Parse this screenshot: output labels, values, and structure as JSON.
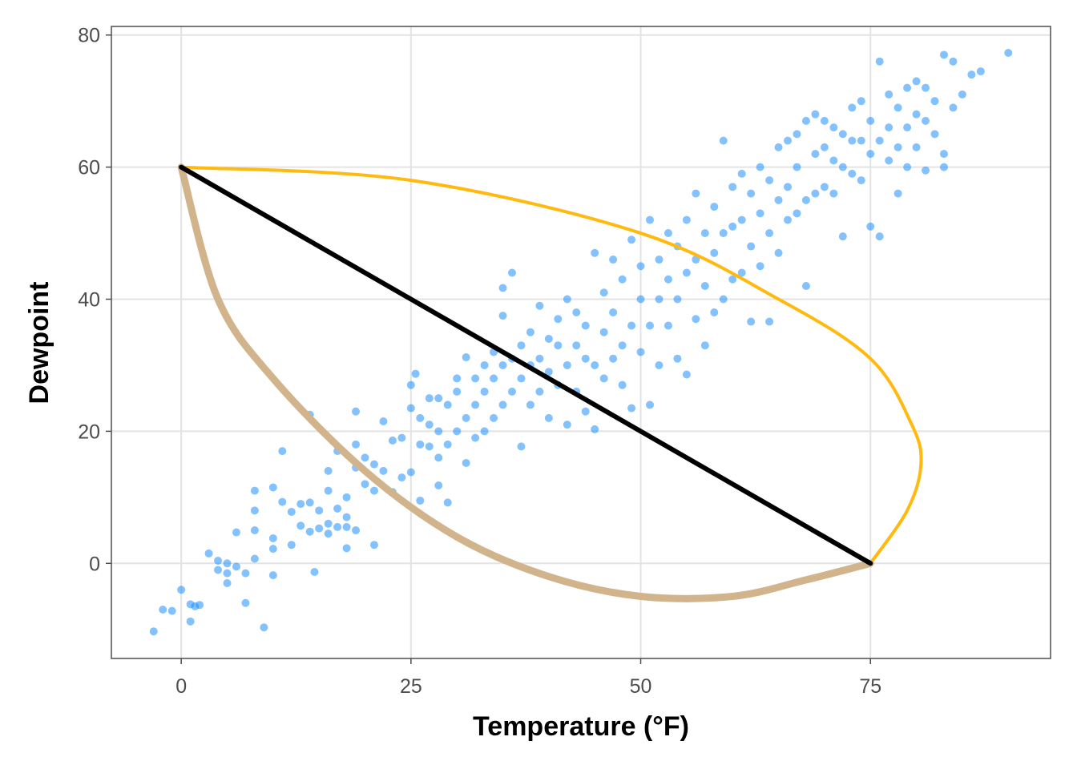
{
  "chart_data": {
    "type": "scatter",
    "title": "",
    "xlabel": "Temperature (°F)",
    "ylabel": "Dewpoint",
    "xlim": [
      -7.6,
      94.6
    ],
    "ylim": [
      -14.4,
      81.3
    ],
    "xticks": [
      0,
      25,
      50,
      75
    ],
    "yticks": [
      0,
      20,
      40,
      60,
      80
    ],
    "xtick_labels": [
      "0",
      "25",
      "50",
      "75"
    ],
    "ytick_labels": [
      "0",
      "20",
      "40",
      "60",
      "80"
    ],
    "grid": true,
    "legend": "none",
    "colors": {
      "points": "#1E90FF",
      "orange_curve": "#FFB90F",
      "tan_curve": "#D2B48C",
      "line": "#000000"
    },
    "points_note_sampled": true,
    "points": [
      [
        -3,
        -10.3
      ],
      [
        -2,
        -7
      ],
      [
        -1,
        -7.2
      ],
      [
        0,
        -4
      ],
      [
        1,
        -6.2
      ],
      [
        1,
        -8.8
      ],
      [
        1.5,
        -6.5
      ],
      [
        2,
        -6.3
      ],
      [
        3,
        1.5
      ],
      [
        4,
        0.4
      ],
      [
        4,
        -1
      ],
      [
        5,
        0
      ],
      [
        5,
        -1.5
      ],
      [
        5,
        -3
      ],
      [
        6,
        -0.5
      ],
      [
        6,
        4.7
      ],
      [
        7,
        -6
      ],
      [
        7,
        -1.5
      ],
      [
        8,
        0.7
      ],
      [
        8,
        5
      ],
      [
        8,
        8
      ],
      [
        8,
        11
      ],
      [
        9,
        -9.7
      ],
      [
        10,
        11.5
      ],
      [
        10,
        3.8
      ],
      [
        10,
        2.2
      ],
      [
        10,
        -1.8
      ],
      [
        11,
        17
      ],
      [
        11,
        9.3
      ],
      [
        12,
        2.8
      ],
      [
        12,
        7.8
      ],
      [
        13,
        5.7
      ],
      [
        13,
        9
      ],
      [
        14,
        4.8
      ],
      [
        14,
        9.2
      ],
      [
        14,
        22.5
      ],
      [
        14.5,
        -1.3
      ],
      [
        15,
        5.3
      ],
      [
        15,
        8
      ],
      [
        16,
        6
      ],
      [
        16,
        4.5
      ],
      [
        16,
        11
      ],
      [
        16,
        14
      ],
      [
        17,
        8.3
      ],
      [
        17,
        17
      ],
      [
        17,
        5.5
      ],
      [
        18,
        5.5
      ],
      [
        18,
        2.3
      ],
      [
        18,
        7
      ],
      [
        18,
        10
      ],
      [
        19,
        5
      ],
      [
        19,
        14.5
      ],
      [
        19,
        18
      ],
      [
        19,
        23
      ],
      [
        20,
        12
      ],
      [
        20,
        16
      ],
      [
        21,
        2.8
      ],
      [
        21,
        11
      ],
      [
        21,
        15
      ],
      [
        22,
        14
      ],
      [
        22,
        21.5
      ],
      [
        23,
        10.8
      ],
      [
        23,
        18.6
      ],
      [
        24,
        13
      ],
      [
        24,
        19
      ],
      [
        25,
        23.5
      ],
      [
        25,
        27
      ],
      [
        25,
        13.8
      ],
      [
        25.5,
        28.7
      ],
      [
        26,
        9.5
      ],
      [
        26,
        18
      ],
      [
        26,
        22
      ],
      [
        27,
        17.7
      ],
      [
        27,
        21
      ],
      [
        27,
        25
      ],
      [
        28,
        11.8
      ],
      [
        28,
        16
      ],
      [
        28,
        20
      ],
      [
        28,
        25
      ],
      [
        29,
        9.2
      ],
      [
        29,
        18
      ],
      [
        29,
        24
      ],
      [
        30,
        20
      ],
      [
        30,
        26
      ],
      [
        30,
        28
      ],
      [
        31,
        15.2
      ],
      [
        31,
        22
      ],
      [
        31,
        31.2
      ],
      [
        32,
        19
      ],
      [
        32,
        24
      ],
      [
        32,
        28
      ],
      [
        33,
        20
      ],
      [
        33,
        26
      ],
      [
        33,
        30
      ],
      [
        34,
        22
      ],
      [
        34,
        28
      ],
      [
        34,
        32
      ],
      [
        35,
        24
      ],
      [
        35,
        30
      ],
      [
        35,
        37.5
      ],
      [
        35,
        41.7
      ],
      [
        36,
        26
      ],
      [
        36,
        31
      ],
      [
        36,
        44
      ],
      [
        37,
        17.7
      ],
      [
        37,
        28
      ],
      [
        37,
        33
      ],
      [
        38,
        24
      ],
      [
        38,
        30
      ],
      [
        38,
        35
      ],
      [
        39,
        26
      ],
      [
        39,
        31
      ],
      [
        39,
        39
      ],
      [
        40,
        22
      ],
      [
        40,
        29
      ],
      [
        40,
        34
      ],
      [
        41,
        27
      ],
      [
        41,
        33
      ],
      [
        41,
        37
      ],
      [
        42,
        21
      ],
      [
        42,
        30
      ],
      [
        42,
        40
      ],
      [
        43,
        26
      ],
      [
        43,
        33
      ],
      [
        43,
        38
      ],
      [
        44,
        23
      ],
      [
        44,
        31
      ],
      [
        44,
        36
      ],
      [
        45,
        20.3
      ],
      [
        45,
        30
      ],
      [
        45,
        47
      ],
      [
        46,
        28
      ],
      [
        46,
        35
      ],
      [
        46,
        41
      ],
      [
        47,
        31
      ],
      [
        47,
        38
      ],
      [
        47,
        46
      ],
      [
        48,
        27
      ],
      [
        48,
        33
      ],
      [
        48,
        43
      ],
      [
        49,
        23.5
      ],
      [
        49,
        36
      ],
      [
        49,
        49
      ],
      [
        50,
        32
      ],
      [
        50,
        40
      ],
      [
        50,
        45
      ],
      [
        51,
        24
      ],
      [
        51,
        36
      ],
      [
        51,
        52
      ],
      [
        52,
        30
      ],
      [
        52,
        40
      ],
      [
        52,
        46
      ],
      [
        53,
        36
      ],
      [
        53,
        43
      ],
      [
        53,
        50
      ],
      [
        54,
        31
      ],
      [
        54,
        40
      ],
      [
        54,
        48
      ],
      [
        55,
        28.6
      ],
      [
        55,
        44
      ],
      [
        55,
        52
      ],
      [
        56,
        37
      ],
      [
        56,
        46
      ],
      [
        56,
        56
      ],
      [
        57,
        33
      ],
      [
        57,
        42
      ],
      [
        57,
        50
      ],
      [
        58,
        38
      ],
      [
        58,
        47
      ],
      [
        58,
        54
      ],
      [
        59,
        40
      ],
      [
        59,
        50
      ],
      [
        59,
        64
      ],
      [
        60,
        43
      ],
      [
        60,
        51
      ],
      [
        60,
        57
      ],
      [
        61,
        44
      ],
      [
        61,
        52
      ],
      [
        61,
        59
      ],
      [
        62,
        36.6
      ],
      [
        62,
        48
      ],
      [
        62,
        56
      ],
      [
        63,
        45
      ],
      [
        63,
        53
      ],
      [
        63,
        60
      ],
      [
        64,
        36.6
      ],
      [
        64,
        50
      ],
      [
        64,
        58
      ],
      [
        65,
        47
      ],
      [
        65,
        55
      ],
      [
        65,
        63
      ],
      [
        66,
        52
      ],
      [
        66,
        57
      ],
      [
        66,
        64
      ],
      [
        67,
        53
      ],
      [
        67,
        60
      ],
      [
        67,
        65
      ],
      [
        68,
        42
      ],
      [
        68,
        55
      ],
      [
        68,
        67
      ],
      [
        69,
        56
      ],
      [
        69,
        62
      ],
      [
        69,
        68
      ],
      [
        70,
        57
      ],
      [
        70,
        63
      ],
      [
        70,
        67
      ],
      [
        71,
        56
      ],
      [
        71,
        61
      ],
      [
        71,
        66
      ],
      [
        72,
        49.5
      ],
      [
        72,
        60
      ],
      [
        72,
        65
      ],
      [
        73,
        59
      ],
      [
        73,
        64
      ],
      [
        73,
        69
      ],
      [
        74,
        58
      ],
      [
        74,
        64
      ],
      [
        74,
        70
      ],
      [
        75,
        51
      ],
      [
        75,
        62
      ],
      [
        75,
        67
      ],
      [
        76,
        49.5
      ],
      [
        76,
        64
      ],
      [
        76,
        76
      ],
      [
        77,
        61
      ],
      [
        77,
        66
      ],
      [
        77,
        71
      ],
      [
        78,
        56
      ],
      [
        78,
        63
      ],
      [
        78,
        69
      ],
      [
        79,
        60
      ],
      [
        79,
        66
      ],
      [
        79,
        72
      ],
      [
        80,
        63
      ],
      [
        80,
        68
      ],
      [
        80,
        73
      ],
      [
        81,
        59.5
      ],
      [
        81,
        67
      ],
      [
        81,
        72
      ],
      [
        82,
        65
      ],
      [
        82,
        70
      ],
      [
        83,
        62
      ],
      [
        83,
        60
      ],
      [
        83,
        77
      ],
      [
        84,
        69
      ],
      [
        84,
        76
      ],
      [
        85,
        71
      ],
      [
        86,
        74
      ],
      [
        87,
        74.5
      ],
      [
        90,
        77.3
      ]
    ],
    "segments": [
      {
        "name": "orange-curve",
        "type": "curve",
        "points": [
          [
            0,
            60
          ],
          [
            25,
            58
          ],
          [
            50,
            50
          ],
          [
            65,
            40
          ],
          [
            75,
            31
          ],
          [
            79.5,
            21
          ],
          [
            80.5,
            15
          ],
          [
            79,
            8
          ],
          [
            75,
            0
          ]
        ]
      },
      {
        "name": "tan-curve",
        "type": "curve",
        "points": [
          [
            0,
            60
          ],
          [
            4,
            40
          ],
          [
            10,
            28
          ],
          [
            20,
            14
          ],
          [
            30,
            4
          ],
          [
            40,
            -2
          ],
          [
            50,
            -5
          ],
          [
            60,
            -5
          ],
          [
            68,
            -2.5
          ],
          [
            75,
            0
          ]
        ]
      },
      {
        "name": "black-line",
        "type": "line",
        "points": [
          [
            0,
            60
          ],
          [
            75,
            0
          ]
        ]
      }
    ]
  }
}
